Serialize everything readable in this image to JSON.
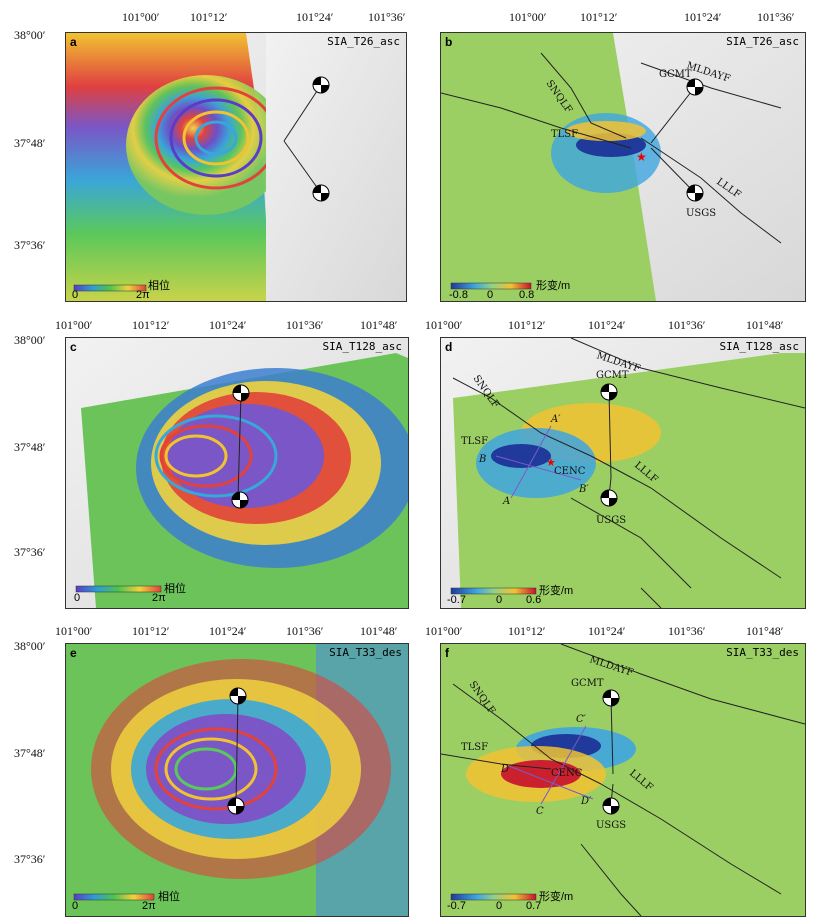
{
  "ticks": {
    "row1_top": [
      "101°00′",
      "101°12′",
      "101°24′",
      "101°36′"
    ],
    "row2_left_top": [
      "101°00′",
      "101°12′",
      "101°24′",
      "101°36′",
      "101°48′"
    ],
    "row2_right_top": [
      "101°00′",
      "101°12′",
      "101°24′",
      "101°36′",
      "101°48′"
    ],
    "row3_left_top": [
      "101°00′",
      "101°12′",
      "101°24′",
      "101°36′",
      "101°48′"
    ],
    "row3_right_top": [
      "101°00′",
      "101°12′",
      "101°24′",
      "101°36′",
      "101°48′"
    ],
    "row1_lat": [
      "38°00′",
      "37°48′",
      "37°36′"
    ],
    "row2_lat": [
      "38°00′",
      "37°48′",
      "37°36′"
    ],
    "row3_lat": [
      "38°00′",
      "37°48′",
      "37°36′"
    ]
  },
  "panels": {
    "a": {
      "tag": "a",
      "sat": "SIA_T26_asc",
      "cb_label": "相位",
      "cb_min": "0",
      "cb_max": "2π"
    },
    "b": {
      "tag": "b",
      "sat": "SIA_T26_asc",
      "cb_label": "形变/m",
      "cb_ticks": [
        "-0.8",
        "0",
        "0.8"
      ],
      "faults": [
        "SNQLF",
        "MLDAYF",
        "GCMT",
        "TLSF",
        "LLLF",
        "USGS"
      ]
    },
    "c": {
      "tag": "c",
      "sat": "SIA_T128_asc",
      "cb_label": "相位",
      "cb_min": "0",
      "cb_max": "2π"
    },
    "d": {
      "tag": "d",
      "sat": "SIA_T128_asc",
      "cb_label": "形变/m",
      "cb_ticks": [
        "-0.7",
        "0",
        "0.6"
      ],
      "faults": [
        "SNQLF",
        "MLDAYF",
        "GCMT",
        "TLSF",
        "CENC",
        "LLLF",
        "USGS"
      ],
      "profile": [
        "A",
        "A′",
        "B",
        "B′"
      ]
    },
    "e": {
      "tag": "e",
      "sat": "SIA_T33_des",
      "cb_label": "相位",
      "cb_min": "0",
      "cb_max": "2π"
    },
    "f": {
      "tag": "f",
      "sat": "SIA_T33_des",
      "cb_label": "形变/m",
      "cb_ticks": [
        "-0.7",
        "0",
        "0.7"
      ],
      "faults": [
        "SNQLF",
        "MLDAYF",
        "GCMT",
        "TLSF",
        "CENC",
        "LLLF",
        "USGS"
      ],
      "profile": [
        "C",
        "C′",
        "D",
        "D′"
      ]
    }
  }
}
